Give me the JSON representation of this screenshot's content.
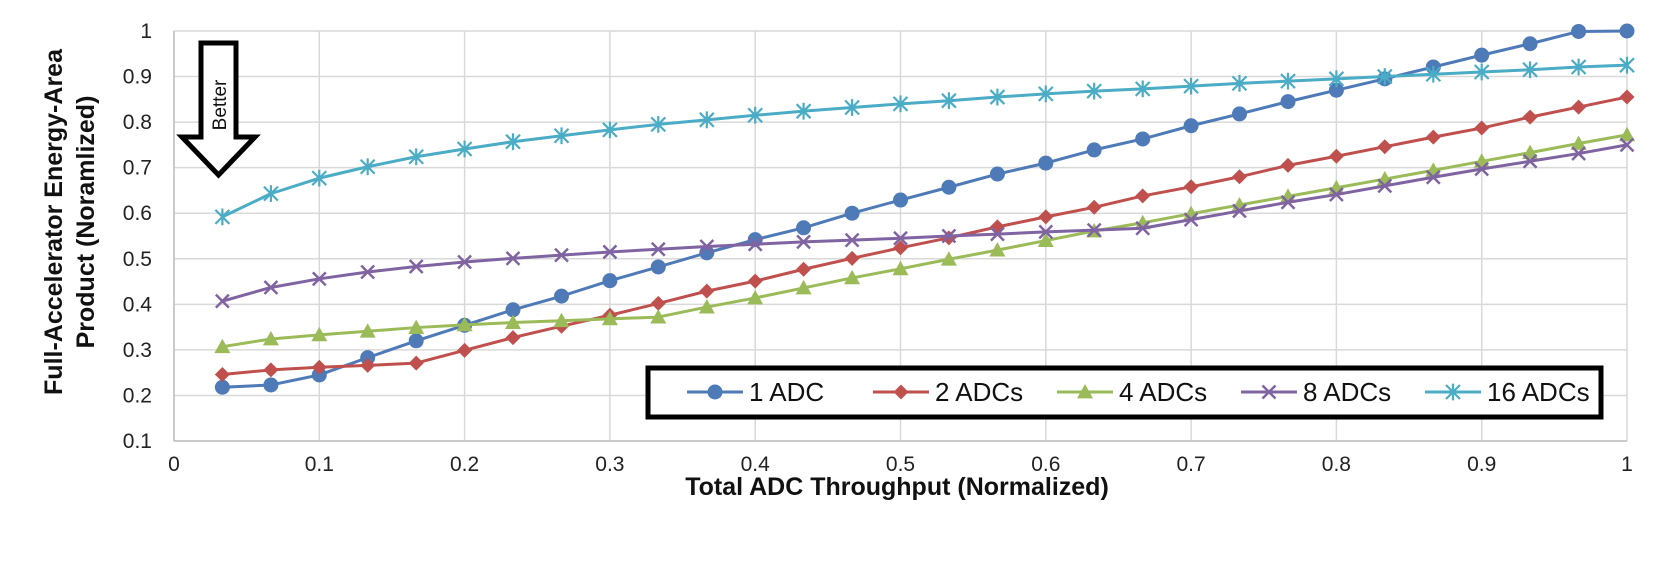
{
  "chart_data": {
    "type": "line",
    "title": "",
    "xlabel": "Total ADC Throughput (Normalized)",
    "ylabel_lines": [
      "Full-Accelerator Energy-Area",
      "Product (Noramlized)"
    ],
    "xlim": [
      0,
      1
    ],
    "ylim": [
      0.1,
      1
    ],
    "x_ticks": [
      0,
      0.1,
      0.2,
      0.3,
      0.4,
      0.5,
      0.6,
      0.7,
      0.8,
      0.9,
      1
    ],
    "x_tick_labels": [
      "0",
      "0.1",
      "0.2",
      "0.3",
      "0.4",
      "0.5",
      "0.6",
      "0.7",
      "0.8",
      "0.9",
      "1"
    ],
    "y_ticks": [
      0.1,
      0.2,
      0.3,
      0.4,
      0.5,
      0.6,
      0.7,
      0.8,
      0.9,
      1
    ],
    "y_tick_labels": [
      "0.1",
      "0.2",
      "0.3",
      "0.4",
      "0.5",
      "0.6",
      "0.7",
      "0.8",
      "0.9",
      "1"
    ],
    "grid": true,
    "legend_position": "bottom-right",
    "annotation": {
      "text": "Better",
      "icon": "down-arrow-icon"
    },
    "x": [
      0.0333,
      0.0667,
      0.1,
      0.1333,
      0.1667,
      0.2,
      0.2333,
      0.2667,
      0.3,
      0.3333,
      0.3667,
      0.4,
      0.4333,
      0.4667,
      0.5,
      0.5333,
      0.5667,
      0.6,
      0.6333,
      0.6667,
      0.7,
      0.7333,
      0.7667,
      0.8,
      0.8333,
      0.8667,
      0.9,
      0.9333,
      0.9667,
      1.0
    ],
    "series": [
      {
        "name": "1 ADC",
        "color": "#4e7ab7",
        "marker": "circle",
        "values": [
          0.218,
          0.223,
          0.245,
          0.283,
          0.32,
          0.354,
          0.388,
          0.418,
          0.452,
          0.482,
          0.513,
          0.542,
          0.568,
          0.6,
          0.629,
          0.657,
          0.686,
          0.71,
          0.739,
          0.763,
          0.792,
          0.818,
          0.845,
          0.87,
          0.895,
          0.921,
          0.947,
          0.972,
          0.999,
          1.0
        ]
      },
      {
        "name": "2 ADCs",
        "color": "#c0504d",
        "marker": "diamond",
        "values": [
          0.246,
          0.256,
          0.262,
          0.266,
          0.271,
          0.299,
          0.327,
          0.352,
          0.376,
          0.402,
          0.429,
          0.451,
          0.477,
          0.501,
          0.524,
          0.546,
          0.57,
          0.592,
          0.613,
          0.638,
          0.658,
          0.68,
          0.705,
          0.725,
          0.746,
          0.767,
          0.787,
          0.811,
          0.833,
          0.855
        ]
      },
      {
        "name": "4 ADCs",
        "color": "#9bbb59",
        "marker": "triangle",
        "values": [
          0.307,
          0.324,
          0.333,
          0.341,
          0.349,
          0.355,
          0.36,
          0.364,
          0.368,
          0.372,
          0.394,
          0.414,
          0.436,
          0.458,
          0.478,
          0.499,
          0.519,
          0.54,
          0.561,
          0.579,
          0.599,
          0.618,
          0.637,
          0.656,
          0.675,
          0.694,
          0.714,
          0.733,
          0.753,
          0.772
        ]
      },
      {
        "name": "8 ADCs",
        "color": "#8064a2",
        "marker": "x",
        "values": [
          0.407,
          0.437,
          0.456,
          0.471,
          0.483,
          0.493,
          0.501,
          0.508,
          0.515,
          0.521,
          0.527,
          0.532,
          0.537,
          0.541,
          0.545,
          0.55,
          0.554,
          0.559,
          0.563,
          0.567,
          0.586,
          0.605,
          0.624,
          0.641,
          0.66,
          0.679,
          0.697,
          0.714,
          0.731,
          0.75
        ]
      },
      {
        "name": "16 ADCs",
        "color": "#4bacc6",
        "marker": "star",
        "values": [
          0.592,
          0.643,
          0.677,
          0.702,
          0.724,
          0.741,
          0.757,
          0.77,
          0.783,
          0.795,
          0.805,
          0.815,
          0.824,
          0.832,
          0.84,
          0.847,
          0.855,
          0.862,
          0.868,
          0.873,
          0.879,
          0.885,
          0.89,
          0.895,
          0.9,
          0.905,
          0.91,
          0.915,
          0.921,
          0.925
        ]
      }
    ]
  }
}
